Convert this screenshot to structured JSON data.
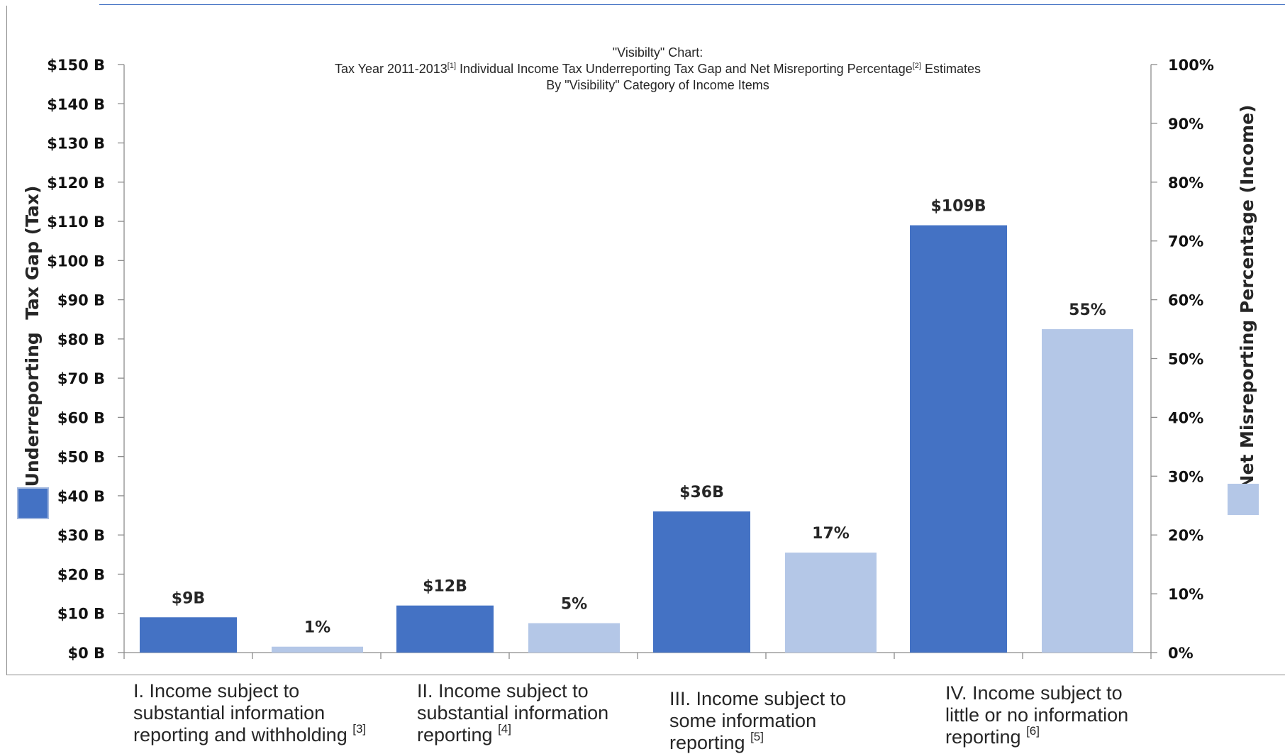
{
  "chart_data": {
    "type": "bar",
    "title_lines": [
      "\"Visibilty\" Chart:",
      "Tax Year 2011-2013",
      "[1]",
      " Individual  Income Tax  Underreporting  Tax Gap and Net Misreporting  Percentage",
      "[2]",
      " Estimates",
      "By  \"Visibility\" Category of Income Items"
    ],
    "categories": [
      {
        "text": "I. Income subject to\nsubstantial information\nreporting and withholding ",
        "note": "[3]"
      },
      {
        "text": "II. Income subject to\nsubstantial information\nreporting ",
        "note": "[4]"
      },
      {
        "text": "III. Income subject to\nsome information\nreporting ",
        "note": "[5]"
      },
      {
        "text": "IV. Income subject to\nlittle or no information\nreporting ",
        "note": "[6]"
      }
    ],
    "series": [
      {
        "name": "Underreporting  Tax Gap (Tax)",
        "axis": "left",
        "color": "#4472c4",
        "values": [
          9,
          12,
          36,
          109
        ],
        "labels": [
          "$9B",
          "$12B",
          "$36B",
          "$109B"
        ]
      },
      {
        "name": "Net Misreporting Percentage (Income)",
        "axis": "right",
        "color": "#b4c7e7",
        "values": [
          1,
          5,
          17,
          55
        ],
        "labels": [
          "1%",
          "5%",
          "17%",
          "55%"
        ]
      }
    ],
    "y_left": {
      "label": "Underreporting  Tax Gap (Tax)",
      "range": [
        0,
        150
      ],
      "ticks": [
        "$0 B",
        "$10 B",
        "$20 B",
        "$30 B",
        "$40 B",
        "$50 B",
        "$60 B",
        "$70 B",
        "$80 B",
        "$90 B",
        "$100 B",
        "$110 B",
        "$120 B",
        "$130 B",
        "$140 B",
        "$150 B"
      ]
    },
    "y_right": {
      "label": "Net Misreporting Percentage (Income)",
      "range": [
        0,
        100
      ],
      "ticks": [
        "0%",
        "10%",
        "20%",
        "30%",
        "40%",
        "50%",
        "60%",
        "70%",
        "80%",
        "90%",
        "100%"
      ]
    },
    "grid": false
  }
}
